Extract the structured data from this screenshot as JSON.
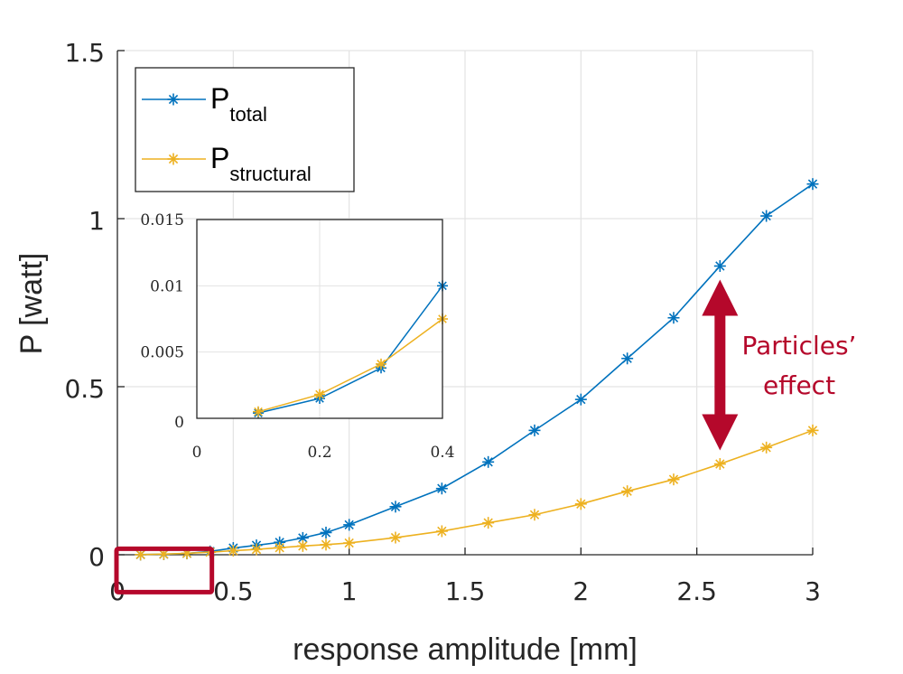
{
  "chart_data": {
    "type": "line",
    "title": "",
    "xlabel": "response amplitude [mm]",
    "ylabel": "P [watt]",
    "xlim": [
      0,
      3
    ],
    "ylim": [
      0,
      1.5
    ],
    "xticks": [
      0,
      0.5,
      1,
      1.5,
      2,
      2.5,
      3
    ],
    "xtick_labels": [
      "0",
      "0.5",
      "1",
      "1.5",
      "2",
      "2.5",
      "3"
    ],
    "yticks": [
      0,
      0.5,
      1,
      1.5
    ],
    "ytick_labels": [
      "0",
      "0.5",
      "1",
      "1.5"
    ],
    "grid": true,
    "legend_position": "top-left",
    "x": [
      0.1,
      0.2,
      0.3,
      0.4,
      0.5,
      0.6,
      0.7,
      0.8,
      0.9,
      1.0,
      1.2,
      1.4,
      1.6,
      1.8,
      2.0,
      2.2,
      2.4,
      2.6,
      2.8,
      3.0
    ],
    "series": [
      {
        "name": "P_total",
        "legend_main": "P",
        "legend_sub": "total",
        "color": "#0072bd",
        "marker": "asterisk",
        "values": [
          0.0004,
          0.0015,
          0.0038,
          0.01,
          0.02,
          0.028,
          0.037,
          0.05,
          0.066,
          0.089,
          0.143,
          0.197,
          0.276,
          0.37,
          0.462,
          0.584,
          0.705,
          0.859,
          1.008,
          1.103
        ]
      },
      {
        "name": "P_structural",
        "legend_main": "P",
        "legend_sub": "structural",
        "color": "#edb120",
        "marker": "asterisk",
        "values": [
          0.0005,
          0.0018,
          0.0041,
          0.0075,
          0.012,
          0.016,
          0.021,
          0.026,
          0.03,
          0.035,
          0.051,
          0.07,
          0.095,
          0.119,
          0.151,
          0.189,
          0.224,
          0.27,
          0.319,
          0.37
        ]
      }
    ],
    "inset": {
      "xlim": [
        0,
        0.4
      ],
      "ylim": [
        0,
        0.015
      ],
      "xticks": [
        0,
        0.2,
        0.4
      ],
      "xtick_labels": [
        "0",
        "0.2",
        "0.4"
      ],
      "yticks": [
        0,
        0.005,
        0.01,
        0.015
      ],
      "ytick_labels": [
        "0",
        "0.005",
        "0.01",
        "0.015"
      ],
      "grid": true,
      "x": [
        0.1,
        0.2,
        0.3,
        0.4
      ],
      "series": [
        {
          "name": "P_total",
          "color": "#0072bd",
          "values": [
            0.0004,
            0.0015,
            0.0038,
            0.01
          ]
        },
        {
          "name": "P_structural",
          "color": "#edb120",
          "values": [
            0.0005,
            0.0018,
            0.0041,
            0.0075
          ]
        }
      ]
    },
    "annotations": {
      "zoom_box": {
        "x_range": [
          0,
          0.4
        ],
        "y_range": [
          -0.05,
          0.05
        ],
        "color": "#b5082b"
      },
      "arrow": {
        "x": 2.6,
        "y_range": [
          0.27,
          0.859
        ],
        "color": "#b5082b"
      },
      "text_lines": [
        "Particles’",
        "effect"
      ],
      "text_color": "#b5082b"
    }
  }
}
